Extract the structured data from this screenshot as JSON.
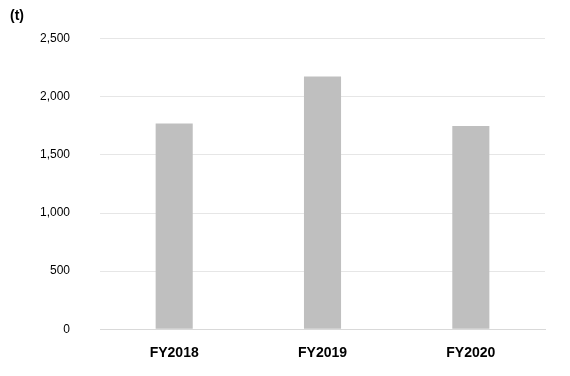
{
  "chart_data": {
    "type": "bar",
    "y_label": "(t)",
    "categories": [
      "FY2018",
      "FY2019",
      "FY2020"
    ],
    "values": [
      1770,
      2175,
      1750
    ],
    "color": "#bfbfbf",
    "ylim": [
      0,
      2500
    ],
    "yticks": [
      0,
      500,
      {
        "value": 1000,
        "label": "1,000"
      },
      {
        "value": 1500,
        "label": "1,500"
      },
      {
        "value": 2000,
        "label": "2,000"
      },
      {
        "value": 2500,
        "label": "2,500"
      }
    ],
    "grid": true
  }
}
